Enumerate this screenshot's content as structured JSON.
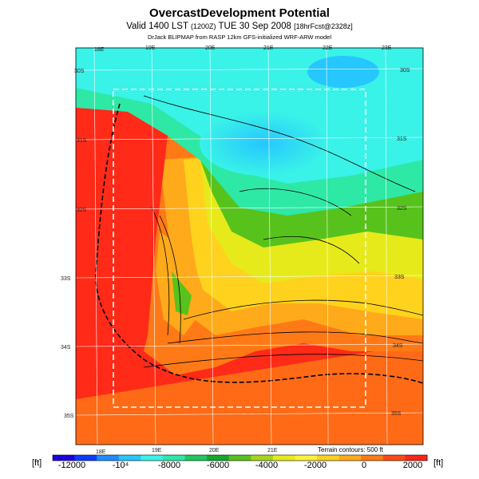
{
  "title": "OvercastDevelopment Potential",
  "subtitle_main": "Valid 1400 LST",
  "subtitle_code": "(1200Z)",
  "subtitle_date": "TUE 30 Sep 2008",
  "subtitle_fcst": "[18hrFcst@2328z]",
  "credit": "DrJack BLIPMAP from RASP 12km GFS-initialized WRF-ARW model",
  "terrain_note": "Terrain contours: 500 ft",
  "lon_labels_top": [
    "18E",
    "19E",
    "20E",
    "21E",
    "22E",
    "23E"
  ],
  "lon_labels_bottom": [
    "18E",
    "19E",
    "20E",
    "21E"
  ],
  "lat_labels_left": [
    "30S",
    "31S",
    "32S",
    "33S",
    "34S",
    "35S"
  ],
  "lat_labels_right": [
    "30S",
    "31S",
    "32S",
    "33S",
    "34S",
    "35S"
  ],
  "colorbar": {
    "unit_left": "[ft]",
    "unit_right": "[ft]",
    "tick_labels": [
      "-12000",
      "-10⁴",
      "-8000",
      "-6000",
      "-4000",
      "-2000",
      "0",
      "2000"
    ],
    "colors": [
      "#1a00e0",
      "#0b3cff",
      "#1f8cff",
      "#26c6ff",
      "#39f2e8",
      "#2ee8a6",
      "#1fc860",
      "#14a82c",
      "#58c21c",
      "#a6d61a",
      "#e6ea1a",
      "#fff23a",
      "#ffd21e",
      "#ffaa1a",
      "#ff7a16",
      "#ff4a14",
      "#ff2618"
    ]
  }
}
